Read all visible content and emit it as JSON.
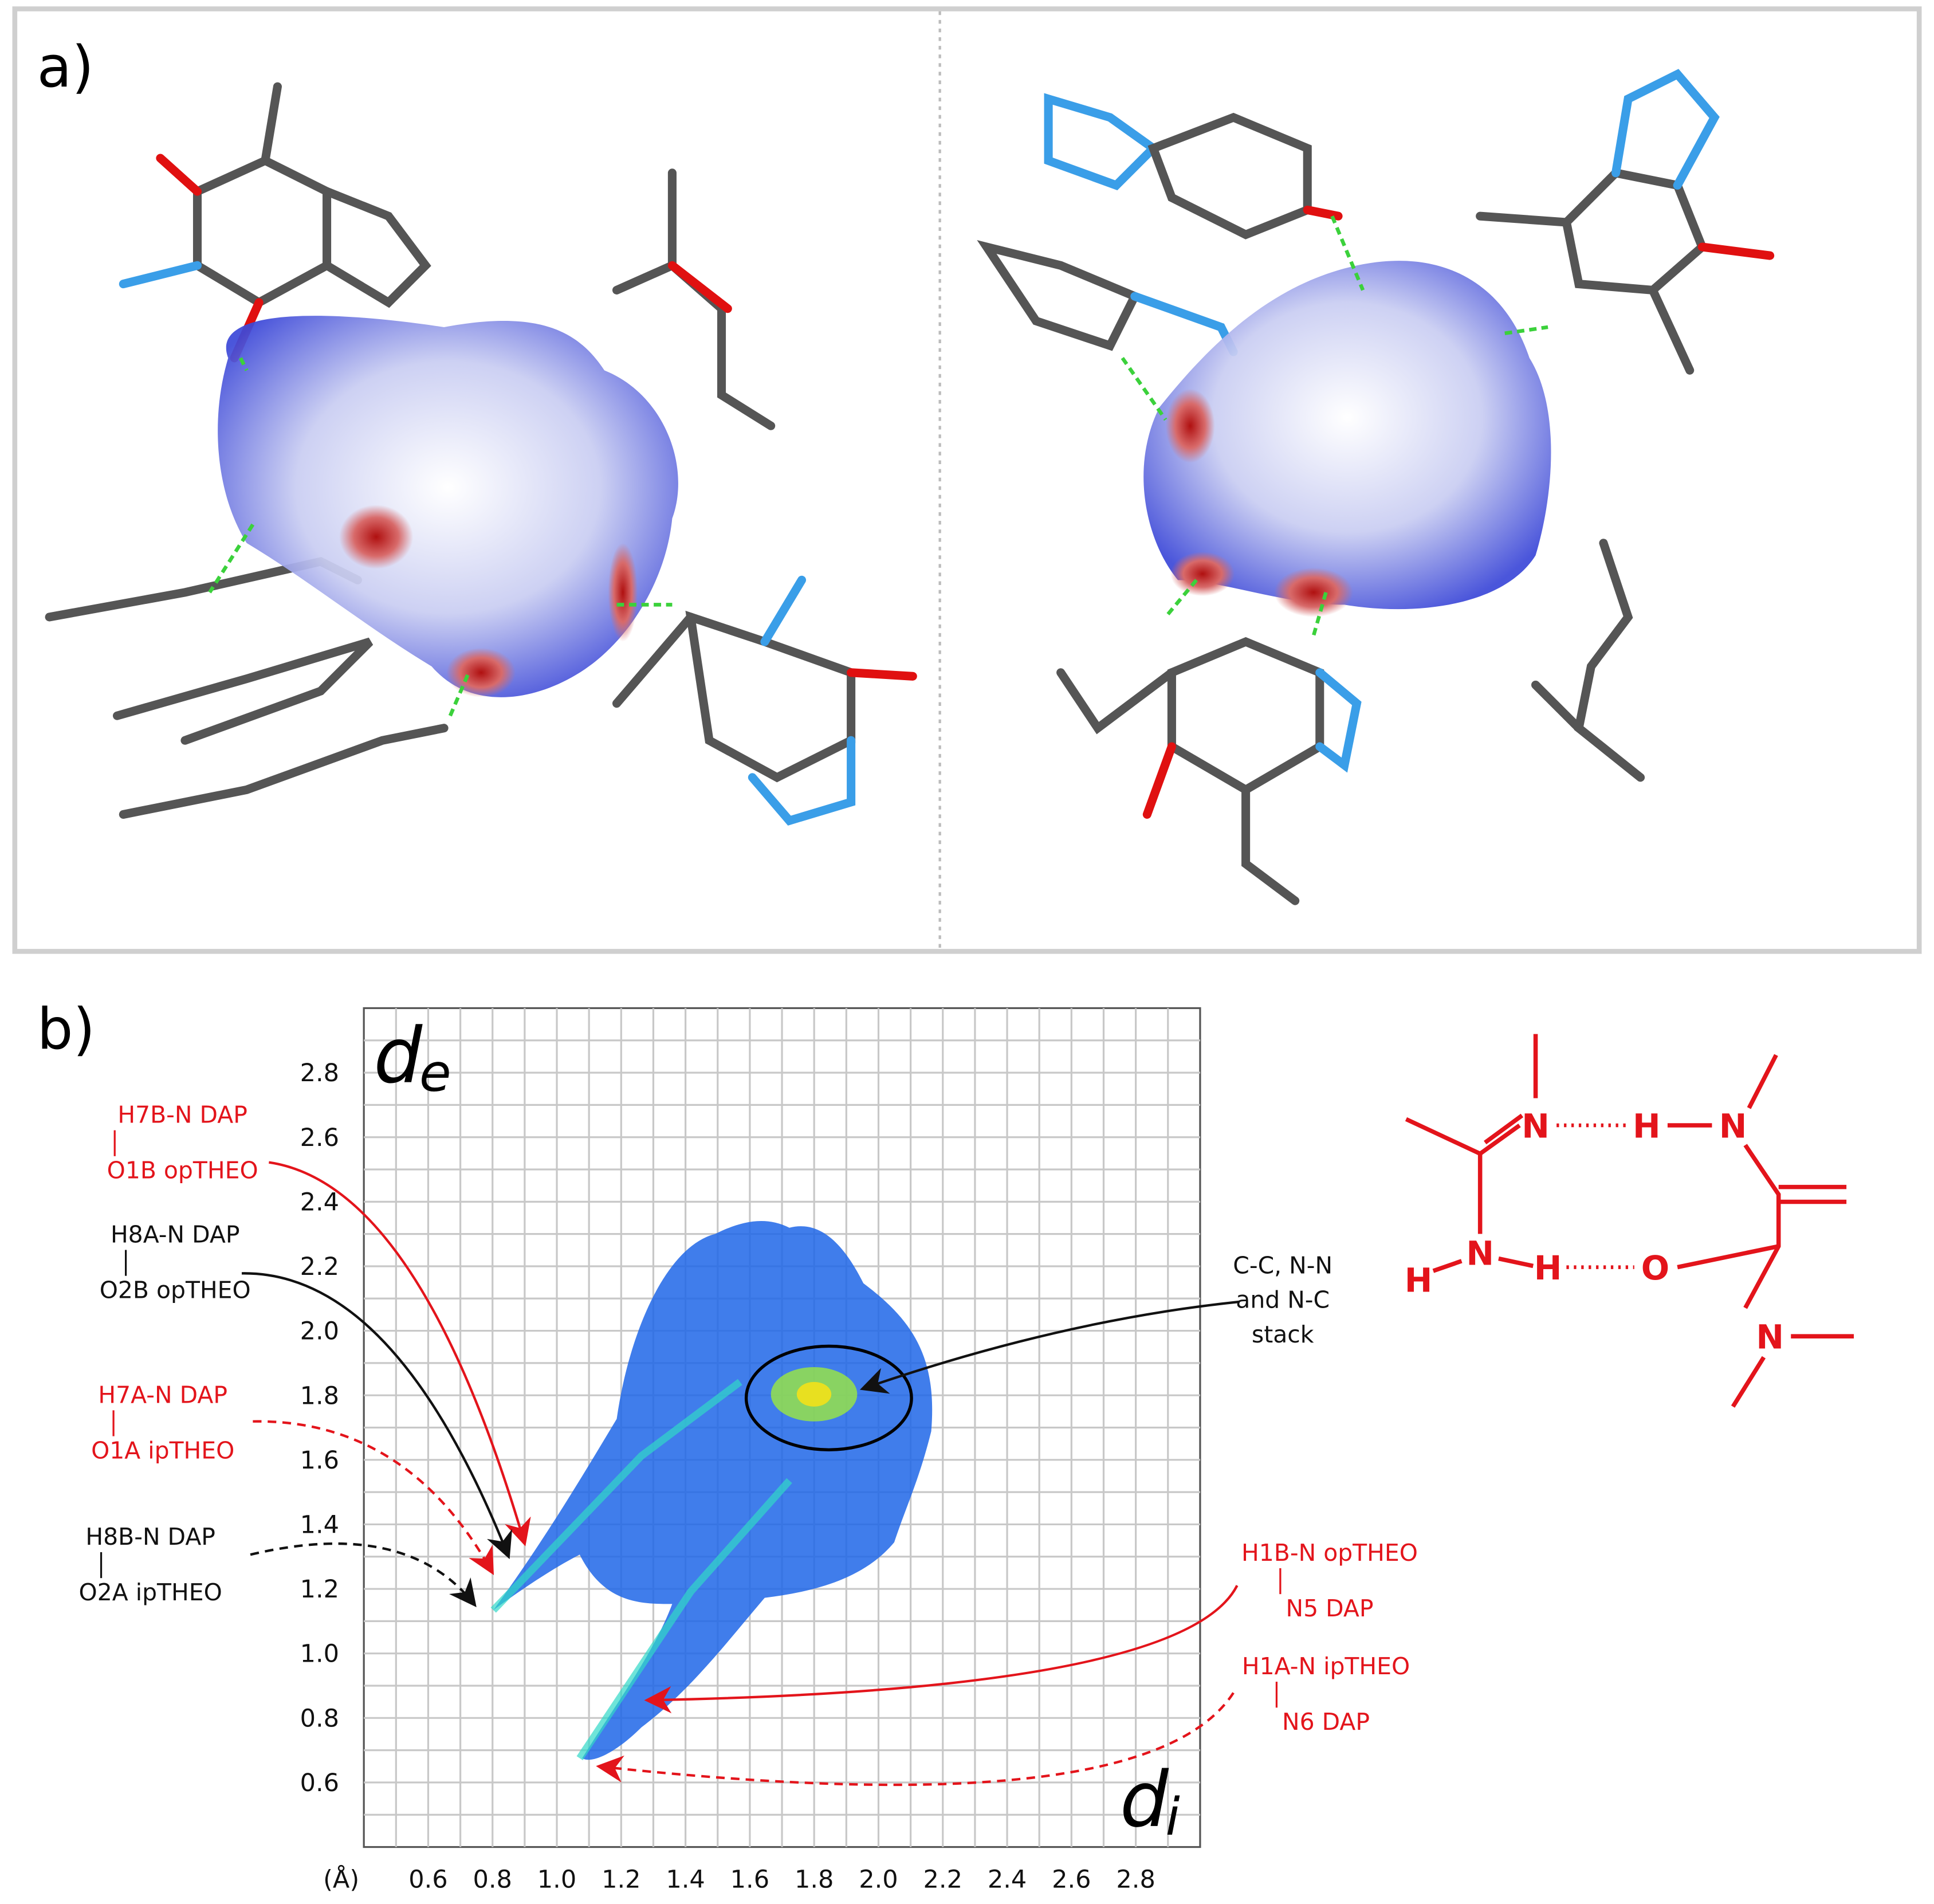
{
  "panel_labels": [
    "a)",
    "b)"
  ],
  "chart_data": {
    "type": "fingerprint",
    "xlim": [
      0.4,
      3.0
    ],
    "ylim": [
      0.4,
      3.0
    ],
    "xticks": [
      0.6,
      0.8,
      {
        "value": 1,
        "label": "1.0"
      },
      1.2,
      1.4,
      1.6,
      1.8,
      {
        "value": 2,
        "label": "2.0"
      },
      2.2,
      2.4,
      2.6,
      2.8
    ],
    "yticks": [
      0.6,
      0.8,
      {
        "value": 1,
        "label": "1.0"
      },
      1.2,
      1.4,
      1.6,
      1.8,
      {
        "value": 2,
        "label": "2.0"
      },
      2.2,
      2.4,
      2.6,
      2.8
    ],
    "xgrid": [
      0.5,
      0.6,
      0.7,
      0.8,
      0.9,
      1.0,
      1.1,
      1.2,
      1.3,
      1.4,
      1.5,
      1.6,
      1.7,
      1.8,
      1.9,
      2.0,
      2.1,
      2.2,
      2.3,
      2.4,
      2.5,
      2.6,
      2.7,
      2.8,
      2.9
    ],
    "ygrid": [
      0.5,
      0.6,
      0.7,
      0.8,
      0.9,
      1.0,
      1.1,
      1.2,
      1.3,
      1.4,
      1.5,
      1.6,
      1.7,
      1.8,
      1.9,
      2.0,
      2.1,
      2.2,
      2.3,
      2.4,
      2.5,
      2.6,
      2.7,
      2.8,
      2.9
    ],
    "grid": true,
    "unit_label": "(Å)",
    "ylabel": "d",
    "ylabel_sub": "e",
    "xlabel": "d",
    "xlabel_sub": "i",
    "annotations": [
      {
        "lines": [
          "H7B-N DAP",
          "O1B opTHEO"
        ],
        "color": "#e3141b",
        "dashed": false,
        "x": 0.9,
        "y": 1.34
      },
      {
        "lines": [
          "H8A-N DAP",
          "O2B opTHEO"
        ],
        "color": "#111111",
        "dashed": false,
        "x": 0.85,
        "y": 1.3
      },
      {
        "lines": [
          "H7A-N DAP",
          "O1A ipTHEO"
        ],
        "color": "#e3141b",
        "dashed": true,
        "x": 0.8,
        "y": 1.25
      },
      {
        "lines": [
          "H8B-N DAP",
          "O2A ipTHEO"
        ],
        "color": "#111111",
        "dashed": true,
        "x": 0.745,
        "y": 1.15
      },
      {
        "lines": [
          "C-C, N-N",
          "and N-C",
          "stack"
        ],
        "color": "#111111",
        "dashed": false,
        "x": 1.95,
        "y": 1.82
      },
      {
        "lines": [
          "H1B-N opTHEO",
          "N5 DAP"
        ],
        "color": "#e3141b",
        "dashed": false,
        "x": 1.28,
        "y": 0.855
      },
      {
        "lines": [
          "H1A-N ipTHEO",
          "N6 DAP"
        ],
        "color": "#e3141b",
        "dashed": true,
        "x": 1.13,
        "y": 0.65
      }
    ]
  },
  "scheme": {
    "color": "#e3141b",
    "labels": [
      "N",
      "H",
      "N",
      "H",
      "N",
      "H",
      "O",
      "N"
    ]
  }
}
